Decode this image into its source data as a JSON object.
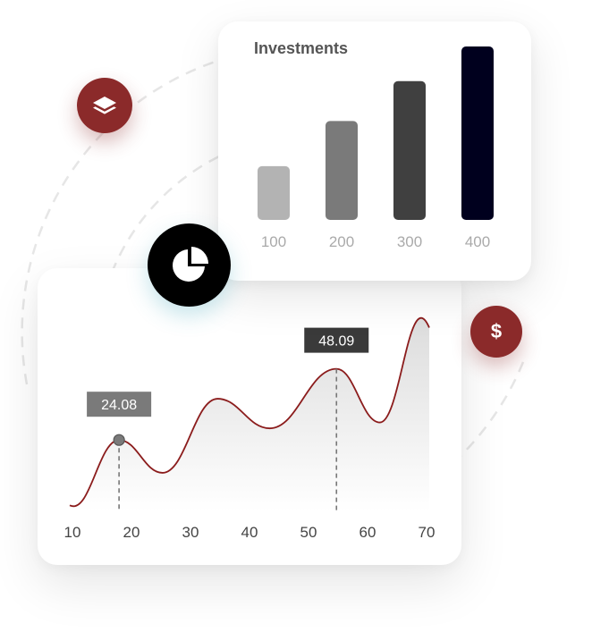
{
  "icons": {
    "layers": "layers-icon",
    "pie": "pie-chart-icon",
    "dollar": "dollar-icon",
    "dollar_symbol": "$"
  },
  "colors": {
    "accent_red": "#8b2a2a",
    "line": "#8b1c1c",
    "badge_dark": "#000000"
  },
  "chart_data": [
    {
      "type": "bar",
      "title": "Investments",
      "categories": [
        "100",
        "200",
        "300",
        "400"
      ],
      "values": [
        31,
        57,
        80,
        100
      ],
      "colors": [
        "#b3b3b3",
        "#7a7a7a",
        "#404040",
        "#00001e"
      ],
      "ylim": [
        0,
        100
      ],
      "grid": false,
      "legend": "none"
    },
    {
      "type": "area",
      "title": "",
      "x": [
        10,
        18.5,
        26,
        35.5,
        44.5,
        56,
        63.5,
        72
      ],
      "y": [
        2,
        24.08,
        13,
        38,
        28,
        48.09,
        30,
        62
      ],
      "xticks": [
        10,
        20,
        30,
        40,
        50,
        60,
        70
      ],
      "xlim": [
        10,
        72
      ],
      "ylim": [
        0,
        70
      ],
      "annotations": [
        {
          "x": 18.5,
          "y": 24.08,
          "label": "24.08"
        },
        {
          "x": 56,
          "y": 48.09,
          "label": "48.09"
        }
      ],
      "grid": false,
      "legend": "none"
    }
  ]
}
